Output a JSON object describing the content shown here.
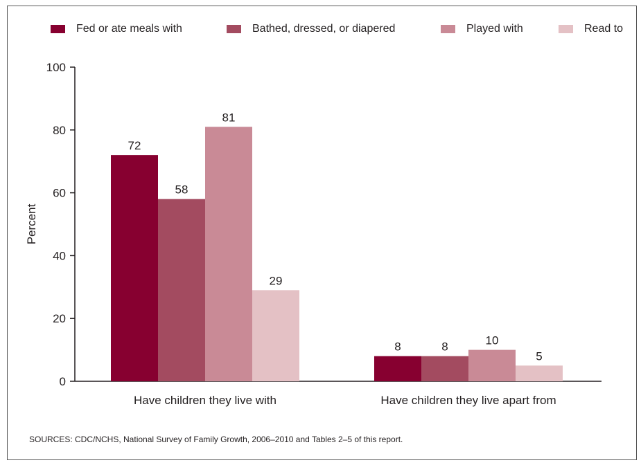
{
  "chart_data": {
    "type": "bar",
    "categories": [
      "Have children they live with",
      "Have children they live apart from"
    ],
    "series": [
      {
        "name": "Fed or ate meals with",
        "color": "#870030",
        "values": [
          72,
          8
        ]
      },
      {
        "name": "Bathed, dressed, or diapered",
        "color": "#a34b60",
        "values": [
          58,
          8
        ]
      },
      {
        "name": "Played with",
        "color": "#c98a96",
        "values": [
          81,
          10
        ]
      },
      {
        "name": "Read to",
        "color": "#e4c1c5",
        "values": [
          29,
          5
        ]
      }
    ],
    "ylabel": "Percent",
    "ylim": [
      0,
      100
    ],
    "yticks": [
      0,
      20,
      40,
      60,
      80,
      100
    ],
    "grid": false,
    "legend_position": "top"
  },
  "source_note": "SOURCES: CDC/NCHS, National Survey of Family Growth, 2006–2010 and Tables 2–5 of this report."
}
